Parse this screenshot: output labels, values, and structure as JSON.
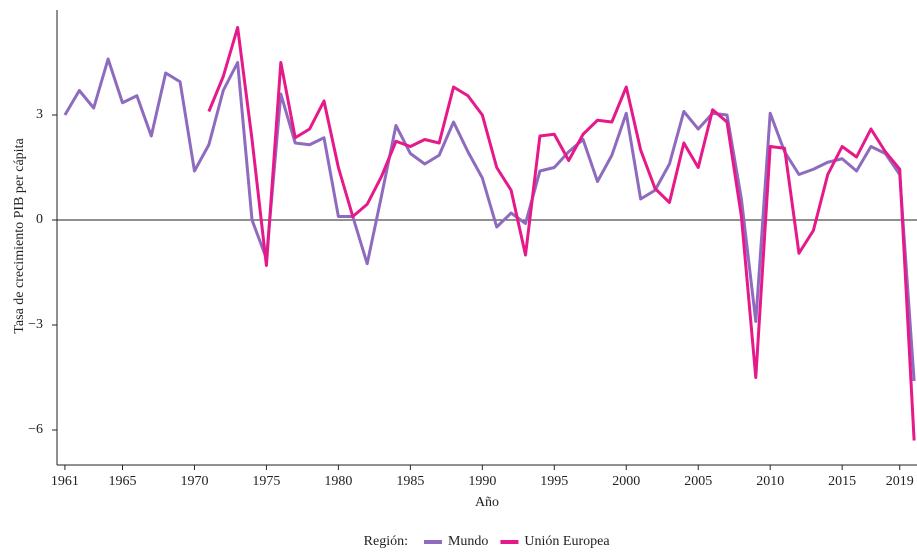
{
  "chart_data": {
    "type": "line",
    "x_label": "Año",
    "y_label": "Tasa de crecimiento PIB per cápita",
    "legend_title": "Región:",
    "legend_position": "bottom",
    "x": [
      1961,
      1962,
      1963,
      1964,
      1965,
      1966,
      1967,
      1968,
      1969,
      1970,
      1971,
      1972,
      1973,
      1974,
      1975,
      1976,
      1977,
      1978,
      1979,
      1980,
      1981,
      1982,
      1983,
      1984,
      1985,
      1986,
      1987,
      1988,
      1989,
      1990,
      1991,
      1992,
      1993,
      1994,
      1995,
      1996,
      1997,
      1998,
      1999,
      2000,
      2001,
      2002,
      2003,
      2004,
      2005,
      2006,
      2007,
      2008,
      2009,
      2010,
      2011,
      2012,
      2013,
      2014,
      2015,
      2016,
      2017,
      2018,
      2019,
      2020
    ],
    "xlim": [
      1960.45,
      2020.2
    ],
    "xticks": [
      1961,
      1965,
      1970,
      1975,
      1980,
      1985,
      1990,
      1995,
      2000,
      2005,
      2010,
      2015,
      2019
    ],
    "ylim": [
      -7,
      6
    ],
    "yticks": [
      {
        "value": -6,
        "label": "−6"
      },
      {
        "value": -3,
        "label": "−3"
      },
      0,
      3
    ],
    "series": [
      {
        "name": "Mundo",
        "color": "#8e6bbf",
        "values": [
          3.0,
          3.7,
          3.2,
          4.6,
          3.35,
          3.55,
          2.4,
          4.2,
          3.95,
          1.4,
          2.15,
          3.7,
          4.5,
          0.0,
          -1.1,
          3.6,
          2.2,
          2.15,
          2.35,
          0.1,
          0.1,
          -1.25,
          0.7,
          2.7,
          1.9,
          1.6,
          1.85,
          2.8,
          1.95,
          1.2,
          -0.2,
          0.2,
          -0.1,
          1.4,
          1.5,
          1.95,
          2.3,
          1.1,
          1.85,
          3.05,
          0.6,
          0.85,
          1.6,
          3.1,
          2.6,
          3.05,
          3.0,
          0.6,
          -2.9,
          3.05,
          1.95,
          1.3,
          1.45,
          1.65,
          1.75,
          1.4,
          2.1,
          1.9,
          1.3,
          -4.6
        ]
      },
      {
        "name": "Unión Europea",
        "color": "#e6198a",
        "values": [
          null,
          null,
          null,
          null,
          null,
          null,
          null,
          null,
          null,
          null,
          3.1,
          4.1,
          5.5,
          2.3,
          -1.3,
          4.5,
          2.35,
          2.6,
          3.4,
          1.5,
          0.1,
          0.45,
          1.25,
          2.25,
          2.1,
          2.3,
          2.2,
          3.8,
          3.55,
          3.0,
          1.5,
          0.85,
          -1.0,
          2.4,
          2.45,
          1.7,
          2.45,
          2.85,
          2.8,
          3.8,
          2.0,
          0.9,
          0.5,
          2.2,
          1.5,
          3.15,
          2.8,
          0.1,
          -4.5,
          2.1,
          2.05,
          -0.95,
          -0.3,
          1.3,
          2.1,
          1.8,
          2.6,
          1.95,
          1.45,
          -6.3
        ]
      }
    ]
  }
}
